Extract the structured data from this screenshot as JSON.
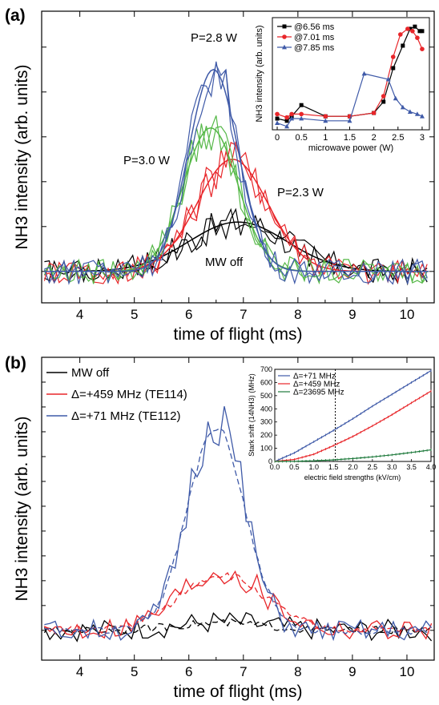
{
  "chart_data": [
    {
      "panel": "(a)",
      "type": "line",
      "xlabel": "time of flight (ms)",
      "ylabel": "NH3 intensity (arb. units)",
      "xlim": [
        3.3,
        10.5
      ],
      "ylim": [
        -0.35,
        2.9
      ],
      "xticks": [
        4,
        5,
        6,
        7,
        8,
        9,
        10
      ],
      "annotations": [
        "P=2.8 W",
        "P=3.0 W",
        "P=2.3 W",
        "MW off"
      ],
      "series": [
        {
          "label": "MW off",
          "color": "#000000",
          "peak_time": 6.9,
          "peak": 0.55,
          "width": 0.9
        },
        {
          "label": "P=2.3 W",
          "color": "#e8262a",
          "peak_time": 6.8,
          "peak": 1.25,
          "width": 0.65
        },
        {
          "label": "P=3.0 W",
          "color": "#55b847",
          "peak_time": 6.4,
          "peak": 1.6,
          "width": 0.5
        },
        {
          "label": "P=2.8 W",
          "color": "#3f5aa8",
          "peak_time": 6.45,
          "peak": 2.25,
          "width": 0.45
        }
      ],
      "inset": {
        "xlabel": "microwave power (W)",
        "ylabel": "NH3 intensity (arb. units)",
        "xlim": [
          -0.1,
          3.15
        ],
        "ylim": [
          0,
          1
        ],
        "xticks": [
          0,
          0.5,
          1,
          1.5,
          2,
          2.5,
          3
        ],
        "series": [
          {
            "name": "@6.56 ms",
            "color": "#000000",
            "marker": "square",
            "x": [
              0,
              0.2,
              0.3,
              0.5,
              1.0,
              1.5,
              2.0,
              2.2,
              2.4,
              2.6,
              2.75,
              2.85,
              2.95,
              3.0
            ],
            "y": [
              0.1,
              0.08,
              0.12,
              0.22,
              0.12,
              0.12,
              0.15,
              0.25,
              0.55,
              0.75,
              0.9,
              0.92,
              0.88,
              0.88
            ]
          },
          {
            "name": "@7.01 ms",
            "color": "#e8262a",
            "marker": "circle",
            "x": [
              0,
              0.2,
              0.3,
              0.5,
              1.0,
              1.5,
              2.0,
              2.2,
              2.4,
              2.55,
              2.7,
              2.8,
              2.9,
              3.0
            ],
            "y": [
              0.14,
              0.11,
              0.14,
              0.14,
              0.12,
              0.12,
              0.15,
              0.3,
              0.65,
              0.85,
              0.9,
              0.88,
              0.82,
              0.72
            ]
          },
          {
            "name": "@7.85 ms",
            "color": "#3f5aa8",
            "marker": "triangle",
            "x": [
              0,
              0.2,
              0.3,
              0.5,
              1.0,
              1.5,
              1.8,
              2.3,
              2.45,
              2.6,
              2.75,
              2.9,
              3.0
            ],
            "y": [
              0.06,
              0.03,
              0.1,
              0.1,
              0.08,
              0.08,
              0.5,
              0.45,
              0.28,
              0.2,
              0.16,
              0.14,
              0.12
            ]
          }
        ]
      }
    },
    {
      "panel": "(b)",
      "type": "line",
      "xlabel": "time of flight (ms)",
      "ylabel": "NH3 intensity (arb. units)",
      "xlim": [
        3.3,
        10.5
      ],
      "ylim": [
        -0.3,
        2.75
      ],
      "xticks": [
        4,
        5,
        6,
        7,
        8,
        9,
        10
      ],
      "legend": [
        "MW off",
        "Δ=+459 MHz (TE114)",
        "Δ=+71 MHz (TE112)"
      ],
      "series": [
        {
          "name": "MW off",
          "color": "#000000",
          "peak_time": 6.6,
          "peak": 0.08,
          "width": 0.8
        },
        {
          "name": "Δ=+459 MHz (TE114)",
          "color": "#e8262a",
          "peak_time": 6.6,
          "peak": 0.6,
          "width": 0.75
        },
        {
          "name": "Δ=+71 MHz (TE112)",
          "color": "#3f5aa8",
          "peak_time": 6.5,
          "peak": 2.2,
          "width": 0.5
        }
      ],
      "inset": {
        "xlabel": "electric field strengths (kV/cm)",
        "ylabel": "Stark shift (14NH3) (MHz)",
        "xlim": [
          0,
          4.0
        ],
        "ylim": [
          0,
          700
        ],
        "xticks": [
          0.0,
          0.5,
          1.0,
          1.5,
          2.0,
          2.5,
          3.0,
          3.5,
          4.0
        ],
        "yticks": [
          0,
          100,
          200,
          300,
          400,
          500,
          600,
          700
        ],
        "vline_x": 1.55,
        "series": [
          {
            "name": "Δ=+71 MHz",
            "color": "#3f5aa8",
            "x": [
              0,
              0.5,
              1.0,
              1.5,
              2.0,
              2.5,
              3.0,
              3.5,
              4.0
            ],
            "y": [
              0,
              65,
              150,
              235,
              325,
              420,
              510,
              600,
              690
            ]
          },
          {
            "name": "Δ=+459 MHz",
            "color": "#e8262a",
            "x": [
              0,
              0.5,
              1.0,
              1.5,
              2.0,
              2.5,
              3.0,
              3.5,
              4.0
            ],
            "y": [
              0,
              15,
              55,
              120,
              190,
              270,
              355,
              445,
              535
            ]
          },
          {
            "name": "Δ=23695 MHz",
            "color": "#1e7a3c",
            "x": [
              0,
              0.5,
              1.0,
              1.5,
              2.0,
              2.5,
              3.0,
              3.5,
              4.0
            ],
            "y": [
              0,
              1,
              5,
              12,
              22,
              35,
              50,
              68,
              88
            ]
          }
        ]
      }
    }
  ]
}
